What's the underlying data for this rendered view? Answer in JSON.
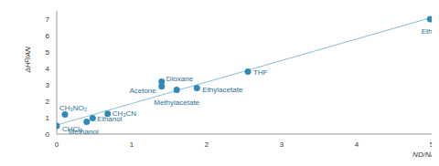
{
  "chart_data": {
    "type": "scatter",
    "x_label": "ND/NA",
    "y_label": "ΔHᴰ/AN",
    "xlim": [
      0,
      5.05
    ],
    "xticks": [
      0,
      1,
      2,
      3,
      4,
      5
    ],
    "ylim": [
      0,
      7.5
    ],
    "yticks": [
      0,
      1,
      2,
      3,
      4,
      5,
      6,
      7
    ],
    "grid": false,
    "color": "#2f8ab8",
    "marker": "circle",
    "points": {
      "x": [
        0,
        0.11,
        0.4,
        0.48,
        0.68,
        1.4,
        1.4,
        1.6,
        1.87,
        2.55,
        4.98
      ],
      "y": [
        0.5,
        1.2,
        0.75,
        0.97,
        1.23,
        3.2,
        2.9,
        2.7,
        2.8,
        3.8,
        7.0
      ],
      "labels": [
        "CHCl₃",
        "CH₃NO₂",
        "Methanol",
        "Ethanol",
        "CH₃CN",
        "Dioxane",
        "Acetone",
        "Methylacetate",
        "Ethylacetate",
        "THF",
        "Ether"
      ]
    },
    "trend_line": {
      "x": [
        0,
        5
      ],
      "y": [
        0.55,
        7.1
      ],
      "color": "#8bbbd8",
      "line_style": "solid"
    }
  }
}
